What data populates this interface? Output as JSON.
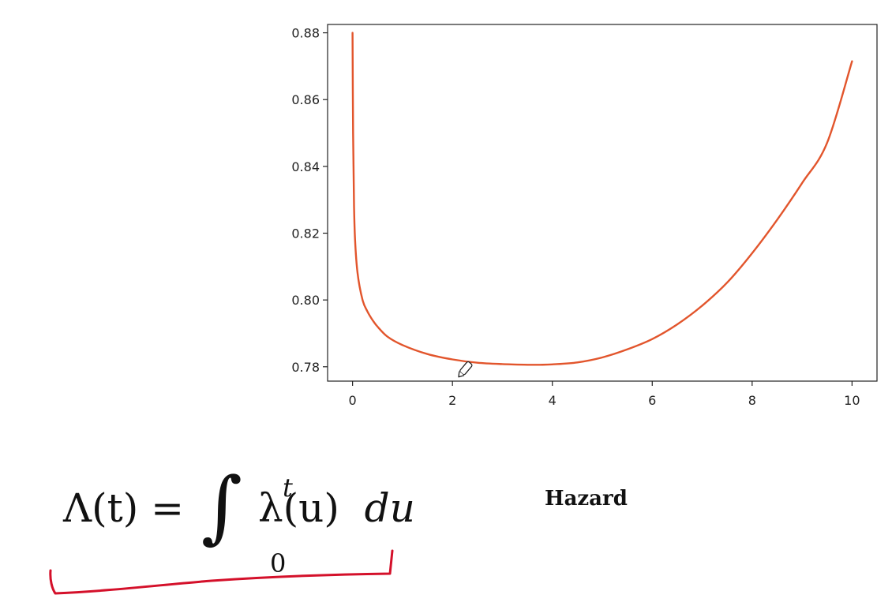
{
  "formula": {
    "lhs": "Λ(t) =",
    "integral_sign": "∫",
    "upper_limit": "t",
    "lower_limit": "0",
    "integrand": "λ(u)",
    "differential": "du"
  },
  "side_label": "Hazard",
  "colors": {
    "curve": "#e2552c",
    "annotation": "#d4102a",
    "axis": "#222222"
  },
  "icons": {
    "cursor": "pen-cursor-icon"
  },
  "chart_data": {
    "type": "line",
    "title": "",
    "xlabel": "",
    "ylabel": "",
    "xlim": [
      -0.5,
      10.5
    ],
    "ylim": [
      0.7757,
      0.8825
    ],
    "x_ticks": [
      "0",
      "2",
      "4",
      "6",
      "8",
      "10"
    ],
    "y_ticks": [
      "0.78",
      "0.80",
      "0.82",
      "0.84",
      "0.86",
      "0.88"
    ],
    "grid": false,
    "legend": "none",
    "series": [
      {
        "x": [
          0.0,
          0.01,
          0.03,
          0.05,
          0.1,
          0.2,
          0.3,
          0.4,
          0.5,
          0.7,
          1.0,
          1.5,
          2.0,
          2.5,
          3.0,
          3.5,
          3.75,
          4.0,
          4.5,
          5.0,
          5.5,
          6.0,
          6.5,
          7.0,
          7.5,
          8.0,
          8.5,
          9.0,
          9.5,
          10.0
        ],
        "values": [
          0.88,
          0.85,
          0.828,
          0.818,
          0.808,
          0.8,
          0.7965,
          0.794,
          0.792,
          0.789,
          0.7865,
          0.7838,
          0.7822,
          0.7812,
          0.7808,
          0.7806,
          0.7806,
          0.7807,
          0.7813,
          0.7828,
          0.7852,
          0.7883,
          0.7927,
          0.7983,
          0.8052,
          0.814,
          0.824,
          0.835,
          0.847,
          0.8715
        ]
      }
    ]
  }
}
